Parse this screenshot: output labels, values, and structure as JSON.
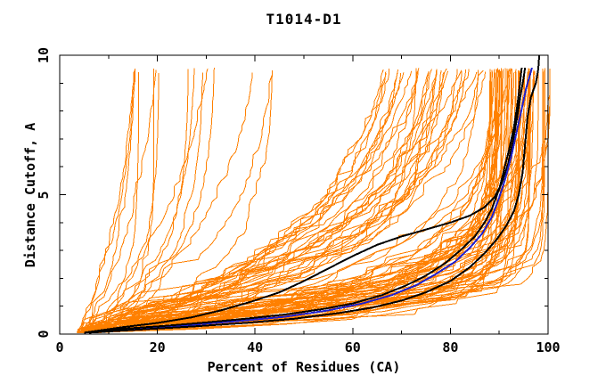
{
  "chart_data": {
    "type": "line",
    "title": "T1014-D1",
    "xlabel": "Percent of Residues (CA)",
    "ylabel": "Distance Cutoff, A",
    "xlim": [
      0,
      100
    ],
    "ylim": [
      0,
      10
    ],
    "x_major_ticks": [
      0,
      20,
      40,
      60,
      80,
      100
    ],
    "x_minor_ticks": [
      10,
      30,
      50,
      70,
      90
    ],
    "y_major_ticks": [
      0,
      5,
      10
    ],
    "y_minor_ticks": [
      1,
      2,
      3,
      4,
      6,
      7,
      8,
      9
    ],
    "grid": false,
    "legend": null,
    "tick_style": "inward-mirrored",
    "colors": {
      "background": "#FFFFFF",
      "axis": "#000000",
      "models": "#FF8000",
      "highlight_black": "#000000",
      "highlight_blue": "#2121CC"
    },
    "background_models": {
      "note": "Dense ensemble of ~110 orange model accuracy curves, monotonically increasing percent of residues vs distance cutoff; approximated procedurally from seeded parameters.",
      "count": 110,
      "seed": 1014,
      "start_percent_range": [
        3.5,
        8.5
      ],
      "end_percent_range": [
        12,
        100.4
      ],
      "cutoff_range": [
        0.05,
        9.55
      ],
      "poor_fraction": 0.18
    },
    "highlight_series": [
      {
        "name": "highlight-black-early",
        "color_key": "highlight_black",
        "width": 2,
        "points": [
          [
            5,
            0.05
          ],
          [
            13,
            0.25
          ],
          [
            20,
            0.4
          ],
          [
            27,
            0.6
          ],
          [
            33,
            0.85
          ],
          [
            39,
            1.15
          ],
          [
            45,
            1.5
          ],
          [
            50,
            1.9
          ],
          [
            55,
            2.35
          ],
          [
            60,
            2.8
          ],
          [
            65,
            3.2
          ],
          [
            70,
            3.5
          ],
          [
            75,
            3.75
          ],
          [
            80,
            4.0
          ],
          [
            84,
            4.25
          ],
          [
            87,
            4.55
          ],
          [
            89,
            4.9
          ],
          [
            90.5,
            5.4
          ],
          [
            91.8,
            6.1
          ],
          [
            92.8,
            6.9
          ],
          [
            93.6,
            7.7
          ],
          [
            94.3,
            8.5
          ],
          [
            94.9,
            9.1
          ],
          [
            95.3,
            9.55
          ]
        ]
      },
      {
        "name": "highlight-blue",
        "color_key": "highlight_blue",
        "width": 2,
        "points": [
          [
            5,
            0.05
          ],
          [
            16,
            0.2
          ],
          [
            26,
            0.32
          ],
          [
            36,
            0.46
          ],
          [
            46,
            0.62
          ],
          [
            55,
            0.85
          ],
          [
            62,
            1.1
          ],
          [
            68,
            1.4
          ],
          [
            73,
            1.75
          ],
          [
            77,
            2.15
          ],
          [
            81,
            2.6
          ],
          [
            84,
            3.1
          ],
          [
            86.5,
            3.6
          ],
          [
            88.5,
            4.2
          ],
          [
            90,
            4.9
          ],
          [
            91.3,
            5.6
          ],
          [
            92.5,
            6.4
          ],
          [
            93.5,
            7.2
          ],
          [
            94.5,
            8.0
          ],
          [
            95.5,
            8.8
          ],
          [
            96.3,
            9.3
          ],
          [
            96.7,
            9.55
          ]
        ]
      },
      {
        "name": "highlight-black-left",
        "color_key": "highlight_black",
        "width": 2,
        "points": [
          [
            5,
            0.05
          ],
          [
            14,
            0.2
          ],
          [
            22,
            0.3
          ],
          [
            30,
            0.42
          ],
          [
            38,
            0.55
          ],
          [
            46,
            0.7
          ],
          [
            54,
            0.9
          ],
          [
            60,
            1.1
          ],
          [
            66,
            1.4
          ],
          [
            71,
            1.75
          ],
          [
            75,
            2.1
          ],
          [
            79,
            2.55
          ],
          [
            82,
            3.0
          ],
          [
            85,
            3.5
          ],
          [
            87,
            4.0
          ],
          [
            88.5,
            4.5
          ],
          [
            90,
            5.2
          ],
          [
            91,
            5.9
          ],
          [
            92,
            6.6
          ],
          [
            93,
            7.4
          ],
          [
            93.7,
            8.2
          ],
          [
            94.2,
            8.9
          ],
          [
            94.6,
            9.55
          ]
        ]
      },
      {
        "name": "highlight-black-right",
        "color_key": "highlight_black",
        "width": 2,
        "points": [
          [
            6,
            0.05
          ],
          [
            18,
            0.18
          ],
          [
            28,
            0.28
          ],
          [
            38,
            0.4
          ],
          [
            48,
            0.55
          ],
          [
            57,
            0.75
          ],
          [
            64,
            0.95
          ],
          [
            70,
            1.2
          ],
          [
            75,
            1.5
          ],
          [
            80,
            1.9
          ],
          [
            84,
            2.4
          ],
          [
            87,
            2.9
          ],
          [
            89.5,
            3.4
          ],
          [
            91.5,
            3.9
          ],
          [
            93,
            4.4
          ],
          [
            94,
            5.0
          ],
          [
            94.8,
            5.8
          ],
          [
            95.3,
            6.8
          ],
          [
            95.8,
            7.8
          ],
          [
            96.5,
            8.5
          ],
          [
            97.5,
            9.0
          ],
          [
            98,
            9.5
          ],
          [
            98.2,
            10.0
          ]
        ]
      }
    ]
  }
}
